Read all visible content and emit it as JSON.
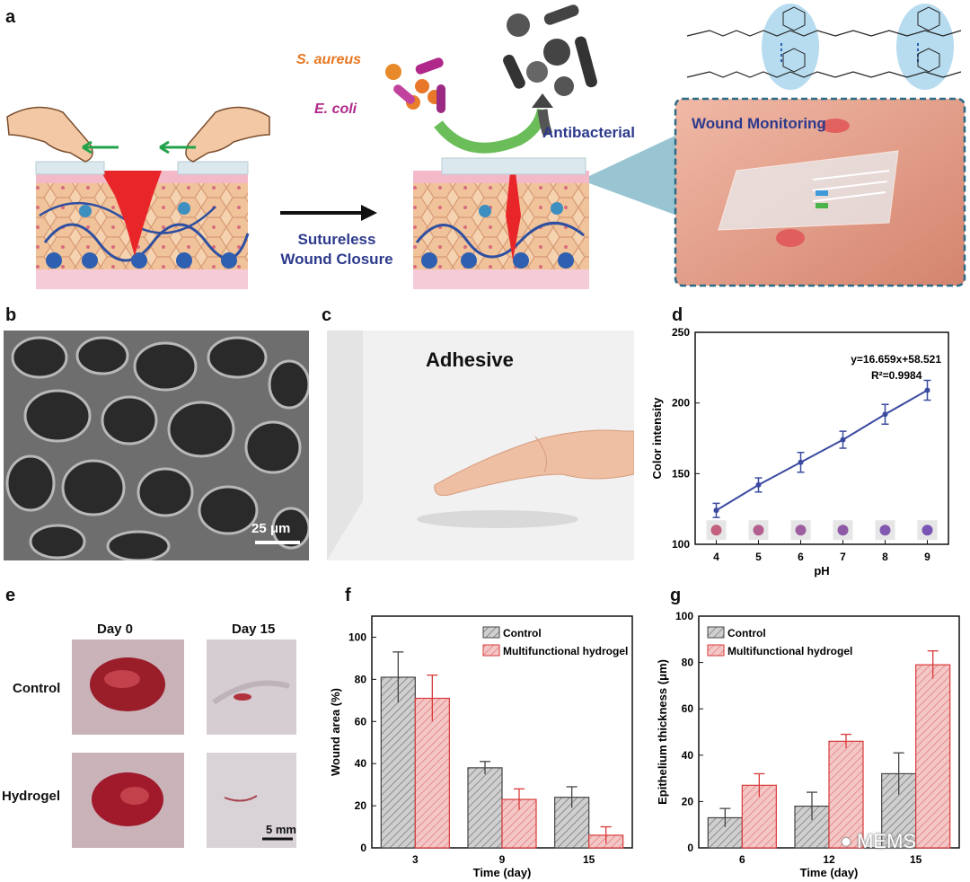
{
  "panels": {
    "a": {
      "letter": "a",
      "bacteria_1": "S. aureus",
      "bacteria_2": "E. coli",
      "antibacterial": "Antibacterial",
      "closure_line1": "Sutureless",
      "closure_line2": "Wound Closure",
      "monitoring": "Wound Monitoring"
    },
    "b": {
      "letter": "b",
      "scale_bar": "25 μm"
    },
    "c": {
      "letter": "c",
      "caption": "Adhesive"
    },
    "d": {
      "letter": "d"
    },
    "e": {
      "letter": "e",
      "col1": "Day 0",
      "col2": "Day 15",
      "row1": "Control",
      "row2": "Hydrogel",
      "scale_bar": "5 mm"
    },
    "f": {
      "letter": "f"
    },
    "g": {
      "letter": "g"
    }
  },
  "colors": {
    "navy": "#2d3a8c",
    "orange": "#e87722",
    "magenta": "#b0288a",
    "line_blue": "#3a4aa0",
    "bar_grey": "#cfcfcf",
    "bar_red": "#f4c7c7",
    "err_red": "#d93a3a"
  },
  "watermark": "MEMS",
  "chart_data": [
    {
      "panel": "d",
      "type": "line",
      "x": [
        4,
        5,
        6,
        7,
        8,
        9
      ],
      "y": [
        124,
        142,
        158,
        174,
        192,
        209
      ],
      "error": [
        5,
        5,
        7,
        6,
        7,
        7
      ],
      "xlabel": "pH",
      "ylabel": "Color intensity",
      "xticks": [
        4,
        5,
        6,
        7,
        8,
        9
      ],
      "yticks": [
        100,
        150,
        200,
        250
      ],
      "ylim": [
        100,
        250
      ],
      "equation": "y=16.659x+58.521",
      "r2": "R²=0.9984",
      "dot_colors": [
        "#c2607e",
        "#b35f8f",
        "#9e5fa0",
        "#8e5aa8",
        "#8258b0",
        "#7a55b5"
      ]
    },
    {
      "panel": "f",
      "type": "bar",
      "categories": [
        "3",
        "9",
        "15"
      ],
      "series": [
        {
          "name": "Control",
          "values": [
            81,
            38,
            24
          ],
          "error": [
            12,
            3,
            5
          ]
        },
        {
          "name": "Multifunctional hydrogel",
          "values": [
            71,
            23,
            6
          ],
          "error": [
            11,
            5,
            4
          ]
        }
      ],
      "xlabel": "Time (day)",
      "ylabel": "Wound area (%)",
      "yticks": [
        0,
        20,
        40,
        60,
        80,
        100
      ],
      "ylim": [
        0,
        110
      ],
      "legend": "top-right"
    },
    {
      "panel": "g",
      "type": "bar",
      "categories": [
        "6",
        "12",
        "15"
      ],
      "series": [
        {
          "name": "Control",
          "values": [
            13,
            18,
            32
          ],
          "error": [
            4,
            6,
            9
          ]
        },
        {
          "name": "Multifunctional hydrogel",
          "values": [
            27,
            46,
            79
          ],
          "error": [
            5,
            3,
            6
          ]
        }
      ],
      "xlabel": "Time (day)",
      "ylabel": "Epithelium thickness (μm)",
      "yticks": [
        0,
        20,
        40,
        60,
        80,
        100
      ],
      "ylim": [
        0,
        100
      ],
      "legend": "top-left"
    }
  ]
}
